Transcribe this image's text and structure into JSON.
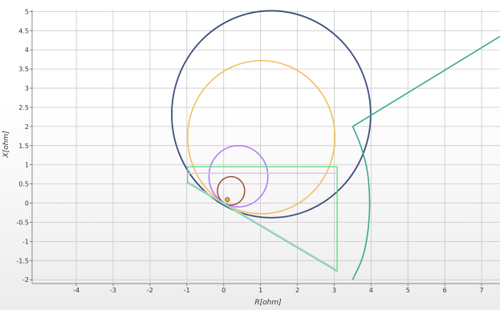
{
  "chart_data": {
    "type": "line",
    "title": "",
    "xlabel": "R[ohm]",
    "ylabel": "X[ohm]",
    "xlim": [
      -5.2,
      7.5
    ],
    "ylim": [
      -2.1,
      5.05
    ],
    "grid": true,
    "x_ticks": [
      -4,
      -3,
      -2,
      -1,
      0,
      1,
      2,
      3,
      4,
      5,
      6,
      7
    ],
    "y_ticks": [
      -2,
      -1.5,
      -1,
      -0.5,
      0,
      0.5,
      1,
      1.5,
      2,
      2.5,
      3,
      3.5,
      4,
      4.5,
      5
    ],
    "x_tick_labels": [
      "-4",
      "-3",
      "-2",
      "-1",
      "0",
      "1",
      "2",
      "3",
      "4",
      "5",
      "6",
      "7"
    ],
    "y_tick_labels": [
      "-2",
      "-1.5",
      "-1",
      "-0.5",
      "0",
      "0.5",
      "1",
      "1.5",
      "2",
      "2.5",
      "3",
      "3.5",
      "4",
      "4.5",
      "5"
    ],
    "circles": [
      {
        "cx": 1.29,
        "cy": 2.32,
        "r": 2.7,
        "color": "#3d4f7c",
        "stroke_width": 1.8
      },
      {
        "cx": 1.02,
        "cy": 1.72,
        "r": 2.0,
        "color": "#f0c060",
        "stroke_width": 1.6
      },
      {
        "cx": 0.4,
        "cy": 0.7,
        "r": 0.8,
        "color": "#b07ef0",
        "stroke_width": 1.6
      },
      {
        "cx": 0.2,
        "cy": 0.32,
        "r": 0.37,
        "color": "#a0483c",
        "stroke_width": 1.5
      }
    ],
    "polylines": [
      {
        "points": [
          [
            -0.98,
            0.95
          ],
          [
            3.08,
            0.95
          ],
          [
            3.08,
            -1.78
          ],
          [
            -0.98,
            0.53
          ],
          [
            -0.98,
            0.95
          ]
        ],
        "color": "#50e07a",
        "stroke_width": 1.3
      },
      {
        "points": [
          [
            -1.0,
            0.78
          ],
          [
            3.08,
            0.78
          ]
        ],
        "color": "#e6c0f0",
        "stroke_width": 1.6
      },
      {
        "points": [
          [
            -0.97,
            0.55
          ],
          [
            3.08,
            -1.75
          ]
        ],
        "color": "#c8c8e6",
        "stroke_width": 1.6
      },
      {
        "points": [
          [
            7.5,
            4.35
          ],
          [
            3.5,
            2.0
          ]
        ],
        "color": "#3aa890",
        "stroke_width": 1.6
      }
    ],
    "arcs": [
      {
        "points": [
          [
            3.5,
            2.0
          ],
          [
            3.85,
            1.3
          ],
          [
            4.0,
            0.0
          ],
          [
            3.85,
            -1.3
          ],
          [
            3.5,
            -2.0
          ]
        ],
        "color": "#3aa890",
        "stroke_width": 1.6
      }
    ],
    "markers": [
      {
        "x": 0.1,
        "y": 0.09,
        "color": "#d8b040",
        "edge_color": "#806020"
      }
    ]
  }
}
